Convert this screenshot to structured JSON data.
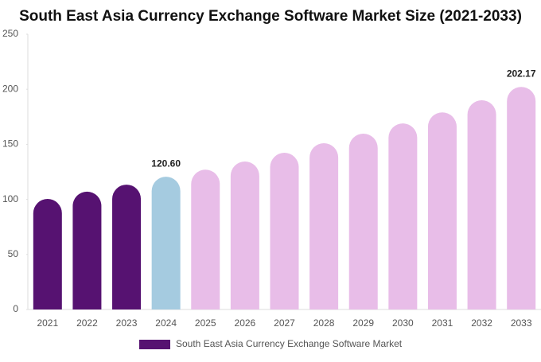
{
  "chart_data": {
    "type": "bar",
    "title": "South East Asia Currency Exchange Software Market Size (2021-2033)",
    "categories": [
      "2021",
      "2022",
      "2023",
      "2024",
      "2025",
      "2026",
      "2027",
      "2028",
      "2029",
      "2030",
      "2031",
      "2032",
      "2033"
    ],
    "series": [
      {
        "name": "South East Asia Currency Exchange Software Market",
        "color": "#561271",
        "values": [
          100.4,
          107,
          113.4,
          120.6,
          127,
          134.4,
          142.3,
          151,
          159.7,
          169,
          179,
          190,
          202.17
        ],
        "value_labels": [
          null,
          null,
          null,
          "120.60",
          null,
          null,
          null,
          null,
          null,
          null,
          null,
          null,
          "202.17"
        ],
        "colors": [
          "#561271",
          "#561271",
          "#561271",
          "#a5cbe0",
          "#e8bde8",
          "#e8bde8",
          "#e8bde8",
          "#e8bde8",
          "#e8bde8",
          "#e8bde8",
          "#e8bde8",
          "#e8bde8",
          "#e8bde8"
        ]
      }
    ],
    "ylim": [
      0,
      250
    ],
    "yticks": [
      0,
      50,
      100,
      150,
      200,
      250
    ],
    "grid": false
  }
}
